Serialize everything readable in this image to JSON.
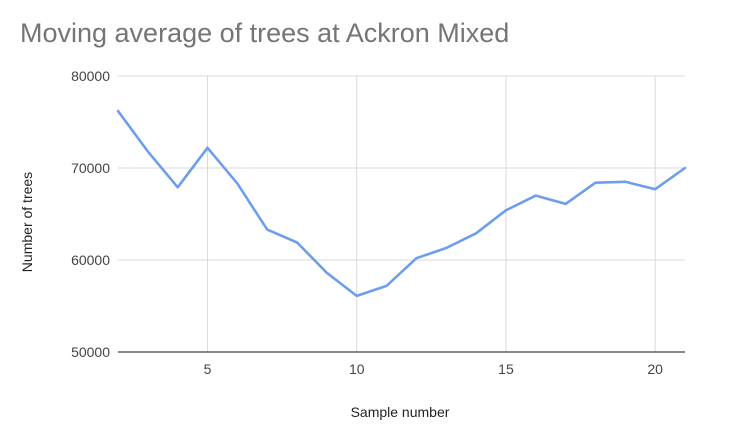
{
  "chart_data": {
    "type": "line",
    "title": "Moving average of trees at Ackron Mixed",
    "xlabel": "Sample number",
    "ylabel": "Number of trees",
    "xlim": [
      2,
      21
    ],
    "ylim": [
      50000,
      80000
    ],
    "x_ticks": [
      5,
      10,
      15,
      20
    ],
    "y_ticks": [
      50000,
      60000,
      70000,
      80000
    ],
    "grid": true,
    "legend": "none",
    "series": [
      {
        "color": "#6d9eeb",
        "points": [
          {
            "x": 2,
            "y": 76200
          },
          {
            "x": 3,
            "y": 71800
          },
          {
            "x": 4,
            "y": 67900
          },
          {
            "x": 5,
            "y": 72200
          },
          {
            "x": 6,
            "y": 68300
          },
          {
            "x": 7,
            "y": 63300
          },
          {
            "x": 8,
            "y": 61900
          },
          {
            "x": 9,
            "y": 58600
          },
          {
            "x": 10,
            "y": 56100
          },
          {
            "x": 11,
            "y": 57200
          },
          {
            "x": 12,
            "y": 60200
          },
          {
            "x": 13,
            "y": 61300
          },
          {
            "x": 14,
            "y": 62900
          },
          {
            "x": 15,
            "y": 65400
          },
          {
            "x": 16,
            "y": 67000
          },
          {
            "x": 17,
            "y": 66100
          },
          {
            "x": 18,
            "y": 68400
          },
          {
            "x": 19,
            "y": 68500
          },
          {
            "x": 20,
            "y": 67700
          },
          {
            "x": 21,
            "y": 70000
          }
        ]
      }
    ]
  },
  "colors": {
    "grid": "#d9d9d9",
    "axis": "#444444",
    "line": "#6d9eeb"
  }
}
